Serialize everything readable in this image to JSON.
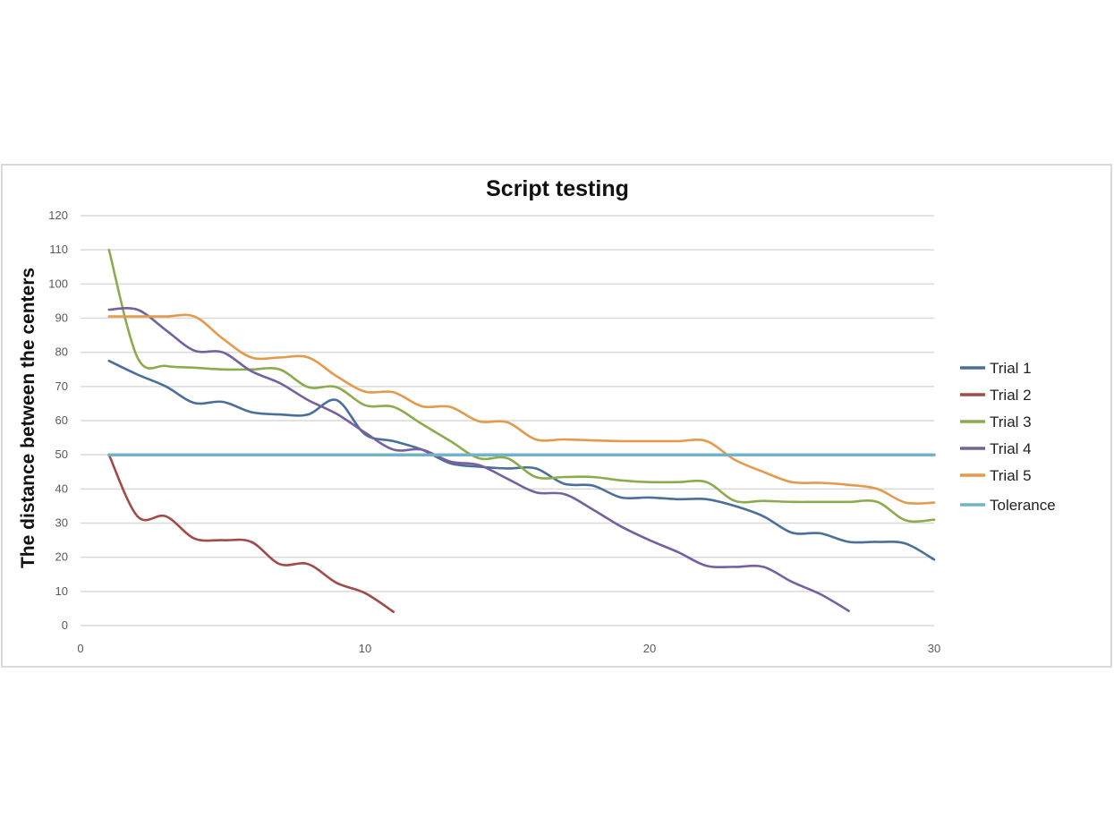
{
  "chart_data": {
    "type": "line",
    "title": "Script testing",
    "xlabel": "",
    "ylabel": "The distance between the centers",
    "xlim": [
      0,
      30
    ],
    "ylim": [
      0,
      120
    ],
    "xticks": [
      0,
      10,
      20,
      30
    ],
    "yticks": [
      0,
      10,
      20,
      30,
      40,
      50,
      60,
      70,
      80,
      90,
      100,
      110,
      120
    ],
    "grid": "horizontal",
    "legend_position": "right",
    "series": [
      {
        "name": "Trial 1",
        "color": "#4a6f9c",
        "x": [
          1,
          2,
          3,
          4,
          5,
          6,
          7,
          8,
          9,
          10,
          11,
          12,
          13,
          14,
          15,
          16,
          17,
          18,
          19,
          20,
          21,
          22,
          23,
          24,
          25,
          26,
          27,
          28,
          29,
          30
        ],
        "y": [
          77.5,
          73.5,
          70,
          65.2,
          65.5,
          62.5,
          61.8,
          61.8,
          66,
          56,
          54,
          51.5,
          47.5,
          46.5,
          46,
          46,
          41.5,
          41,
          37.5,
          37.5,
          37,
          37,
          35,
          32,
          27.2,
          27,
          24.5,
          24.5,
          24,
          19.3
        ]
      },
      {
        "name": "Trial 2",
        "color": "#a14a49",
        "x": [
          1,
          2,
          3,
          4,
          5,
          6,
          7,
          8,
          9,
          10,
          11
        ],
        "y": [
          50,
          32,
          32,
          25.5,
          25,
          24.5,
          18,
          18,
          12.5,
          9.5,
          4
        ]
      },
      {
        "name": "Trial 3",
        "color": "#8bab4d",
        "x": [
          1,
          2,
          3,
          4,
          5,
          6,
          7,
          8,
          9,
          10,
          11,
          12,
          13,
          14,
          15,
          16,
          17,
          18,
          19,
          20,
          21,
          22,
          23,
          24,
          25,
          26,
          27,
          28,
          29,
          30
        ],
        "y": [
          110,
          78.5,
          76,
          75.5,
          75,
          75,
          75,
          69.8,
          69.8,
          64.5,
          64,
          59,
          54,
          49,
          49,
          43.5,
          43.5,
          43.5,
          42.5,
          42,
          42,
          42,
          36.5,
          36.5,
          36.2,
          36.2,
          36.2,
          36.2,
          30.8,
          31
        ]
      },
      {
        "name": "Trial 4",
        "color": "#7560a0",
        "x": [
          1,
          2,
          3,
          4,
          5,
          6,
          7,
          8,
          9,
          10,
          11,
          12,
          13,
          14,
          15,
          16,
          17,
          18,
          19,
          20,
          21,
          22,
          23,
          24,
          25,
          26,
          27
        ],
        "y": [
          92.5,
          92.5,
          86.5,
          80.5,
          80,
          74.5,
          71,
          66,
          62,
          56.5,
          51.5,
          51.5,
          48,
          47,
          43,
          39,
          38.5,
          34,
          29,
          25,
          21.5,
          17.5,
          17.2,
          17.2,
          12.8,
          9.2,
          4.3
        ]
      },
      {
        "name": "Trial 5",
        "color": "#e49a4c",
        "x": [
          1,
          2,
          3,
          4,
          5,
          6,
          7,
          8,
          9,
          10,
          11,
          12,
          13,
          14,
          15,
          16,
          17,
          18,
          19,
          20,
          21,
          22,
          23,
          24,
          25,
          26,
          27,
          28,
          29,
          30
        ],
        "y": [
          90.5,
          90.5,
          90.5,
          90.5,
          84,
          78.5,
          78.5,
          78.5,
          73,
          68.5,
          68.3,
          64.2,
          64,
          59.8,
          59.5,
          54.5,
          54.5,
          54.2,
          54,
          54,
          54,
          54,
          48.5,
          45,
          42,
          41.8,
          41.2,
          40,
          36,
          36
        ]
      },
      {
        "name": "Tolerance",
        "color": "#73b3c5",
        "x": [
          1,
          30
        ],
        "y": [
          50,
          50
        ]
      }
    ]
  }
}
